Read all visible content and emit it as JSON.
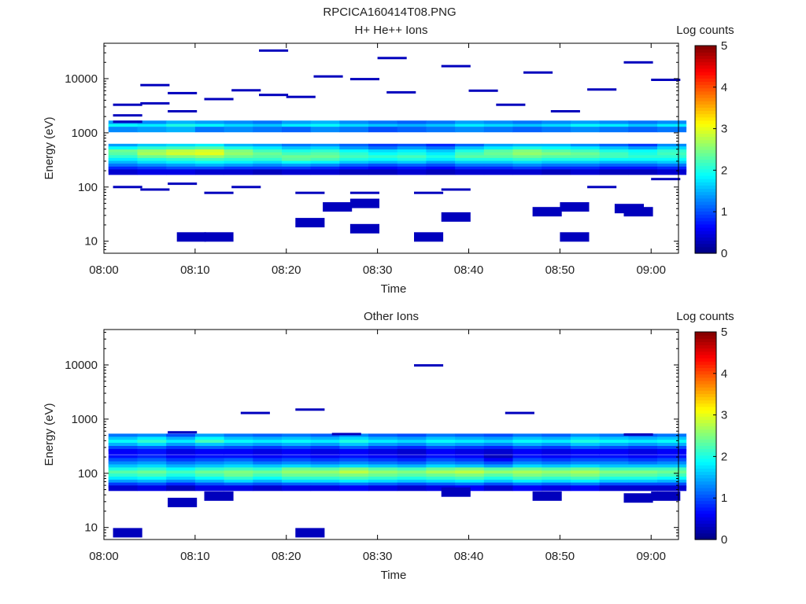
{
  "figure_title": "RPCICA160414T08.PNG",
  "colorbar": {
    "label": "Log counts",
    "ticks": [
      "0",
      "1",
      "2",
      "3",
      "4",
      "5"
    ],
    "min": 0,
    "max": 5,
    "colormap": "jet"
  },
  "chart_data": [
    {
      "type": "heatmap",
      "title": "H+ He++ Ions",
      "xlabel": "Time",
      "ylabel": "Energy (eV)",
      "yscale": "log",
      "xlim": [
        "08:00",
        "09:03"
      ],
      "ylim": [
        6,
        45000
      ],
      "x_ticks": [
        "08:00",
        "08:10",
        "08:20",
        "08:30",
        "08:40",
        "08:50",
        "09:00"
      ],
      "y_ticks": [
        "10",
        "100",
        "1000",
        "10000"
      ],
      "time_bins": [
        "08:00:30",
        "08:03:40",
        "08:06:50",
        "08:10:00",
        "08:13:10",
        "08:16:20",
        "08:19:30",
        "08:22:40",
        "08:25:50",
        "08:29:00",
        "08:32:10",
        "08:35:20",
        "08:38:30",
        "08:41:40",
        "08:44:50",
        "08:48:00",
        "08:51:10",
        "08:54:20",
        "08:57:30",
        "09:00:40"
      ],
      "bin_width_min": 3.2,
      "energy_bands_eV": [
        {
          "e": 1500,
          "levels": [
            1.4,
            1.3,
            1.5,
            1.4,
            1.3,
            1.2,
            1.4,
            1.5,
            1.3,
            1.2,
            1.1,
            1.2,
            1.4,
            1.3,
            1.2,
            1.3,
            1.4,
            1.3,
            1.2,
            1.3
          ]
        },
        {
          "e": 1300,
          "levels": [
            1.9,
            1.8,
            2.0,
            1.9,
            1.7,
            1.6,
            1.8,
            1.9,
            1.7,
            1.6,
            1.5,
            1.6,
            1.8,
            1.7,
            1.6,
            1.7,
            1.9,
            1.8,
            1.6,
            1.8
          ]
        },
        {
          "e": 1150,
          "levels": [
            1.3,
            1.4,
            1.5,
            1.2,
            1.3,
            1.2,
            1.1,
            1.3,
            1.2,
            1.0,
            1.1,
            1.2,
            1.3,
            1.2,
            1.1,
            1.2,
            1.3,
            1.2,
            1.1,
            1.2
          ]
        },
        {
          "e": 560,
          "levels": [
            1.4,
            1.6,
            1.7,
            1.8,
            1.5,
            1.4,
            1.2,
            1.3,
            1.1,
            0.9,
            1.0,
            0.8,
            1.1,
            1.4,
            1.5,
            1.5,
            1.3,
            1.1,
            0.9,
            1.3
          ]
        },
        {
          "e": 500,
          "levels": [
            1.9,
            2.1,
            2.2,
            2.3,
            2.0,
            1.8,
            1.6,
            1.7,
            1.4,
            1.2,
            1.4,
            1.2,
            1.6,
            1.8,
            2.0,
            1.9,
            1.8,
            1.6,
            1.4,
            1.7
          ]
        },
        {
          "e": 440,
          "levels": [
            2.4,
            2.6,
            2.8,
            2.9,
            2.5,
            2.2,
            2.0,
            2.1,
            1.9,
            1.7,
            1.8,
            1.6,
            2.0,
            2.3,
            2.5,
            2.3,
            2.2,
            2.0,
            1.9,
            2.1
          ]
        },
        {
          "e": 390,
          "levels": [
            2.3,
            2.7,
            2.9,
            3.0,
            2.6,
            2.4,
            2.2,
            2.3,
            2.1,
            1.9,
            2.0,
            1.8,
            2.2,
            2.4,
            2.6,
            2.5,
            2.4,
            2.2,
            2.0,
            2.2
          ]
        },
        {
          "e": 345,
          "levels": [
            2.1,
            2.4,
            2.5,
            2.6,
            2.4,
            2.3,
            2.4,
            2.4,
            2.2,
            2.1,
            2.2,
            2.0,
            2.3,
            2.3,
            2.4,
            2.3,
            2.3,
            2.2,
            2.1,
            2.1
          ]
        },
        {
          "e": 305,
          "levels": [
            1.8,
            2.0,
            2.1,
            2.2,
            2.1,
            2.1,
            2.3,
            2.2,
            2.0,
            1.9,
            2.0,
            1.8,
            2.0,
            2.0,
            2.1,
            2.0,
            2.0,
            1.9,
            1.9,
            1.9
          ]
        },
        {
          "e": 270,
          "levels": [
            1.5,
            1.7,
            1.8,
            1.9,
            1.8,
            1.7,
            1.9,
            1.8,
            1.6,
            1.5,
            1.6,
            1.4,
            1.6,
            1.6,
            1.7,
            1.6,
            1.6,
            1.5,
            1.5,
            1.6
          ]
        },
        {
          "e": 240,
          "levels": [
            1.2,
            1.3,
            1.4,
            1.5,
            1.4,
            1.3,
            1.4,
            1.3,
            1.1,
            1.0,
            1.1,
            1.0,
            1.2,
            1.2,
            1.3,
            1.2,
            1.2,
            1.1,
            1.1,
            1.2
          ]
        },
        {
          "e": 212,
          "levels": [
            0.8,
            0.9,
            1.0,
            1.0,
            0.9,
            0.9,
            0.9,
            0.8,
            0.7,
            0.6,
            0.7,
            0.6,
            0.8,
            0.8,
            0.9,
            0.8,
            0.8,
            0.7,
            0.7,
            0.8
          ]
        },
        {
          "e": 188,
          "levels": [
            0.4,
            0.5,
            0.5,
            0.4,
            0.4,
            0.3,
            0.4,
            0.4,
            0.3,
            0.3,
            0.4,
            0.3,
            0.4,
            0.4,
            0.4,
            0.3,
            0.4,
            0.3,
            0.3,
            0.4
          ]
        }
      ],
      "sparse_counts": [
        {
          "t": "08:01",
          "e": 3300
        },
        {
          "t": "08:01",
          "e": 2100
        },
        {
          "t": "08:01",
          "e": 1600
        },
        {
          "t": "08:01",
          "e": 100
        },
        {
          "t": "08:04",
          "e": 3500
        },
        {
          "t": "08:04",
          "e": 7600
        },
        {
          "t": "08:04",
          "e": 90
        },
        {
          "t": "08:07",
          "e": 5400
        },
        {
          "t": "08:07",
          "e": 2500
        },
        {
          "t": "08:07",
          "e": 115
        },
        {
          "t": "08:08",
          "e": 12
        },
        {
          "t": "08:11",
          "e": 12
        },
        {
          "t": "08:11",
          "e": 4200
        },
        {
          "t": "08:11",
          "e": 78
        },
        {
          "t": "08:14",
          "e": 6100
        },
        {
          "t": "08:14",
          "e": 100
        },
        {
          "t": "08:17",
          "e": 5000
        },
        {
          "t": "08:17",
          "e": 33000
        },
        {
          "t": "08:20",
          "e": 4600
        },
        {
          "t": "08:21",
          "e": 78
        },
        {
          "t": "08:21",
          "e": 22
        },
        {
          "t": "08:23",
          "e": 11000
        },
        {
          "t": "08:24",
          "e": 43
        },
        {
          "t": "08:27",
          "e": 9800
        },
        {
          "t": "08:27",
          "e": 78
        },
        {
          "t": "08:27",
          "e": 50
        },
        {
          "t": "08:27",
          "e": 17
        },
        {
          "t": "08:30",
          "e": 24000
        },
        {
          "t": "08:31",
          "e": 5600
        },
        {
          "t": "08:34",
          "e": 12
        },
        {
          "t": "08:34",
          "e": 78
        },
        {
          "t": "08:37",
          "e": 17000
        },
        {
          "t": "08:37",
          "e": 90
        },
        {
          "t": "08:37",
          "e": 28
        },
        {
          "t": "08:40",
          "e": 6000
        },
        {
          "t": "08:43",
          "e": 3300
        },
        {
          "t": "08:46",
          "e": 13000
        },
        {
          "t": "08:47",
          "e": 35
        },
        {
          "t": "08:49",
          "e": 2500
        },
        {
          "t": "08:50",
          "e": 12
        },
        {
          "t": "08:50",
          "e": 43
        },
        {
          "t": "08:53",
          "e": 6300
        },
        {
          "t": "08:53",
          "e": 100
        },
        {
          "t": "08:56",
          "e": 40
        },
        {
          "t": "08:57",
          "e": 20000
        },
        {
          "t": "09:00",
          "e": 9500
        },
        {
          "t": "09:00",
          "e": 140
        },
        {
          "t": "08:57",
          "e": 35
        }
      ]
    },
    {
      "type": "heatmap",
      "title": "Other Ions",
      "xlabel": "Time",
      "ylabel": "Energy (eV)",
      "yscale": "log",
      "xlim": [
        "08:00",
        "09:03"
      ],
      "ylim": [
        6,
        45000
      ],
      "x_ticks": [
        "08:00",
        "08:10",
        "08:20",
        "08:30",
        "08:40",
        "08:50",
        "09:00"
      ],
      "y_ticks": [
        "10",
        "100",
        "1000",
        "10000"
      ],
      "time_bins": [
        "08:00:30",
        "08:03:40",
        "08:06:50",
        "08:10:00",
        "08:13:10",
        "08:16:20",
        "08:19:30",
        "08:22:40",
        "08:25:50",
        "08:29:00",
        "08:32:10",
        "08:35:20",
        "08:38:30",
        "08:41:40",
        "08:44:50",
        "08:48:00",
        "08:51:10",
        "08:54:20",
        "08:57:30",
        "09:00:40"
      ],
      "bin_width_min": 3.2,
      "energy_bands_eV": [
        {
          "e": 480,
          "levels": [
            1.2,
            1.3,
            1.0,
            1.4,
            1.2,
            1.1,
            1.2,
            1.1,
            1.3,
            1.1,
            1.0,
            1.2,
            1.1,
            1.0,
            1.2,
            1.1,
            1.3,
            1.2,
            1.1,
            1.2
          ]
        },
        {
          "e": 420,
          "levels": [
            1.6,
            1.8,
            1.5,
            1.9,
            1.6,
            1.5,
            1.6,
            1.5,
            1.7,
            1.5,
            1.4,
            1.6,
            1.5,
            1.4,
            1.6,
            1.5,
            1.7,
            1.6,
            1.5,
            1.6
          ]
        },
        {
          "e": 370,
          "levels": [
            1.9,
            2.1,
            1.8,
            2.2,
            1.9,
            1.8,
            1.9,
            1.8,
            2.0,
            1.8,
            1.7,
            1.9,
            1.8,
            1.7,
            1.9,
            1.8,
            2.0,
            1.9,
            1.8,
            1.9
          ]
        },
        {
          "e": 325,
          "levels": [
            1.5,
            1.7,
            1.4,
            1.6,
            1.5,
            1.4,
            1.5,
            1.4,
            1.6,
            1.4,
            1.3,
            1.5,
            1.4,
            1.3,
            1.5,
            1.4,
            1.6,
            1.5,
            1.4,
            1.5
          ]
        },
        {
          "e": 285,
          "levels": [
            1.0,
            1.1,
            0.9,
            1.1,
            1.0,
            0.9,
            1.0,
            0.9,
            1.1,
            0.9,
            0.8,
            1.0,
            0.9,
            0.8,
            1.0,
            0.9,
            1.1,
            1.0,
            0.9,
            1.0
          ]
        },
        {
          "e": 250,
          "levels": [
            0.6,
            0.7,
            0.5,
            0.6,
            0.6,
            0.5,
            0.6,
            0.5,
            0.6,
            0.5,
            0.4,
            0.6,
            0.5,
            0.4,
            0.6,
            0.5,
            0.6,
            0.6,
            0.5,
            0.6
          ]
        },
        {
          "e": 195,
          "levels": [
            0.7,
            0.8,
            0.6,
            0.7,
            0.7,
            0.6,
            0.7,
            0.6,
            0.7,
            0.6,
            0.5,
            0.7,
            0.6,
            0.3,
            0.7,
            0.6,
            0.7,
            0.7,
            0.6,
            0.7
          ]
        },
        {
          "e": 170,
          "levels": [
            1.0,
            1.1,
            0.9,
            1.0,
            1.1,
            0.9,
            1.0,
            0.9,
            1.0,
            0.9,
            0.8,
            1.0,
            0.9,
            0.6,
            1.0,
            0.9,
            1.0,
            1.0,
            0.9,
            1.0
          ]
        },
        {
          "e": 148,
          "levels": [
            1.3,
            1.4,
            1.2,
            1.3,
            1.4,
            1.2,
            1.3,
            1.2,
            1.3,
            1.2,
            1.1,
            1.3,
            1.2,
            1.0,
            1.3,
            1.2,
            1.3,
            1.3,
            1.2,
            1.3
          ]
        },
        {
          "e": 130,
          "levels": [
            1.6,
            1.7,
            1.5,
            1.6,
            1.7,
            1.6,
            1.7,
            1.6,
            1.7,
            1.6,
            1.5,
            1.7,
            1.6,
            1.4,
            1.7,
            1.6,
            1.7,
            1.6,
            1.6,
            1.6
          ]
        },
        {
          "e": 114,
          "levels": [
            2.0,
            2.1,
            1.9,
            2.1,
            2.2,
            2.1,
            2.4,
            2.3,
            2.5,
            2.3,
            2.2,
            2.4,
            2.5,
            2.3,
            2.4,
            2.3,
            2.4,
            2.2,
            2.2,
            2.2
          ]
        },
        {
          "e": 100,
          "levels": [
            2.3,
            2.4,
            2.2,
            2.4,
            2.5,
            2.4,
            2.6,
            2.6,
            2.8,
            2.6,
            2.5,
            2.7,
            2.8,
            2.6,
            2.7,
            2.6,
            2.7,
            2.5,
            2.5,
            2.4
          ]
        },
        {
          "e": 88,
          "levels": [
            2.1,
            2.2,
            2.0,
            2.2,
            2.4,
            2.2,
            2.4,
            2.4,
            2.5,
            2.4,
            2.3,
            2.4,
            2.5,
            2.3,
            2.5,
            2.4,
            2.5,
            2.3,
            2.3,
            2.2
          ]
        },
        {
          "e": 77,
          "levels": [
            1.8,
            1.9,
            1.7,
            1.9,
            2.1,
            1.9,
            2.1,
            2.1,
            2.2,
            2.1,
            2.0,
            2.1,
            2.2,
            2.0,
            2.2,
            2.1,
            2.2,
            2.0,
            2.0,
            1.9
          ]
        },
        {
          "e": 68,
          "levels": [
            1.4,
            1.5,
            1.3,
            1.5,
            1.7,
            1.5,
            1.7,
            1.7,
            1.8,
            1.7,
            1.6,
            1.7,
            1.8,
            1.6,
            1.8,
            1.7,
            1.8,
            1.6,
            1.6,
            1.5
          ]
        },
        {
          "e": 60,
          "levels": [
            0.9,
            1.0,
            0.8,
            1.0,
            1.1,
            1.0,
            1.1,
            1.1,
            1.2,
            1.1,
            1.0,
            1.1,
            1.2,
            1.0,
            1.2,
            1.1,
            1.2,
            1.0,
            1.0,
            1.0
          ]
        },
        {
          "e": 53,
          "levels": [
            0.4,
            0.5,
            0.3,
            0.5,
            0.5,
            0.4,
            0.5,
            0.5,
            0.6,
            0.5,
            0.4,
            0.5,
            0.6,
            0.4,
            0.6,
            0.5,
            0.6,
            0.4,
            0.4,
            0.4
          ]
        }
      ],
      "sparse_counts": [
        {
          "t": "08:01",
          "e": 8
        },
        {
          "t": "08:07",
          "e": 570
        },
        {
          "t": "08:07",
          "e": 29
        },
        {
          "t": "08:11",
          "e": 38
        },
        {
          "t": "08:15",
          "e": 1300
        },
        {
          "t": "08:21",
          "e": 1500
        },
        {
          "t": "08:21",
          "e": 8
        },
        {
          "t": "08:25",
          "e": 530
        },
        {
          "t": "08:34",
          "e": 9800
        },
        {
          "t": "08:37",
          "e": 45
        },
        {
          "t": "08:44",
          "e": 1300
        },
        {
          "t": "08:47",
          "e": 38
        },
        {
          "t": "08:57",
          "e": 520
        },
        {
          "t": "08:57",
          "e": 35
        },
        {
          "t": "09:00",
          "e": 38
        }
      ]
    }
  ]
}
